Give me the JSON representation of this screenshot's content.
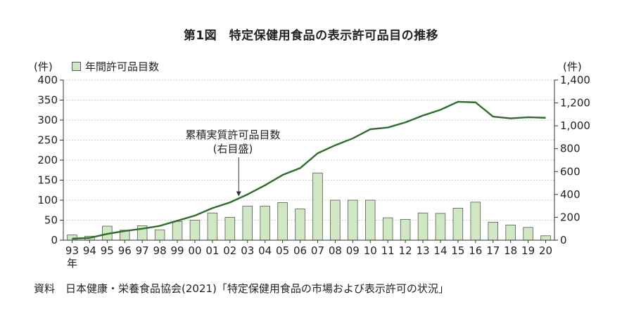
{
  "figure": {
    "title": "第1図　特定保健用食品の表示許可品目の推移",
    "left_unit": "(件)",
    "right_unit": "(件)",
    "legend_label": "年間許可品目数",
    "annotation_line1": "累積実質許可品目数",
    "annotation_line2": "(右目盛)",
    "year_suffix": "年",
    "source": "資料　日本健康・栄養食品協会(2021)「特定保健用食品の市場および表示許可の状況」"
  },
  "colors": {
    "bar_fill": "#cfe7c2",
    "bar_stroke": "#5a5a5a",
    "line": "#2f6b2a",
    "axis": "#333333",
    "grid": "#b0b0b0"
  },
  "chart_data": {
    "type": "bar",
    "categories": [
      "93",
      "94",
      "95",
      "96",
      "97",
      "98",
      "99",
      "00",
      "01",
      "02",
      "03",
      "04",
      "05",
      "06",
      "07",
      "08",
      "09",
      "10",
      "11",
      "12",
      "13",
      "14",
      "15",
      "16",
      "17",
      "18",
      "19",
      "20"
    ],
    "series": [
      {
        "name": "年間許可品目数",
        "type": "bar",
        "axis": "left",
        "values": [
          13,
          10,
          35,
          25,
          36,
          26,
          47,
          50,
          68,
          57,
          85,
          85,
          94,
          78,
          168,
          100,
          100,
          100,
          56,
          52,
          68,
          67,
          80,
          95,
          45,
          38,
          32,
          11
        ]
      },
      {
        "name": "累積実質許可品目数",
        "type": "line",
        "axis": "right",
        "values": [
          13,
          20,
          55,
          80,
          100,
          125,
          170,
          215,
          280,
          330,
          400,
          480,
          570,
          630,
          760,
          830,
          890,
          970,
          985,
          1030,
          1090,
          1140,
          1210,
          1205,
          1080,
          1065,
          1075,
          1070
        ]
      }
    ],
    "y_left": {
      "min": 0,
      "max": 400,
      "ticks": [
        0,
        50,
        100,
        150,
        200,
        250,
        300,
        350,
        400
      ]
    },
    "y_right": {
      "min": 0,
      "max": 1400,
      "ticks": [
        0,
        200,
        400,
        600,
        800,
        1000,
        1200,
        1400
      ],
      "tick_labels": [
        "0",
        "200",
        "400",
        "600",
        "800",
        "1,000",
        "1,200",
        "1,400"
      ]
    },
    "grid": true,
    "legend_position": "top-left"
  }
}
